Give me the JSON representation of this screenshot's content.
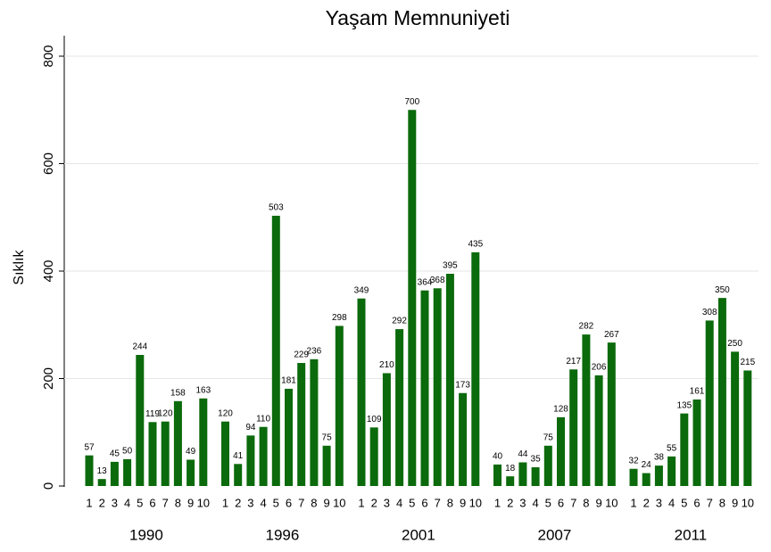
{
  "chart_data": {
    "type": "bar",
    "title": "Yaşam Memnuniyeti",
    "y_label": "Sıklık",
    "categories": [
      "1",
      "2",
      "3",
      "4",
      "5",
      "6",
      "7",
      "8",
      "9",
      "10"
    ],
    "color": "#0b6a0b",
    "groups": [
      {
        "name": "1990",
        "values": [
          57,
          13,
          45,
          50,
          244,
          119,
          120,
          158,
          49,
          163
        ]
      },
      {
        "name": "1996",
        "values": [
          120,
          41,
          94,
          110,
          503,
          181,
          229,
          236,
          75,
          298
        ]
      },
      {
        "name": "2001",
        "values": [
          349,
          109,
          210,
          292,
          700,
          364,
          368,
          395,
          173,
          435
        ]
      },
      {
        "name": "2007",
        "values": [
          40,
          18,
          44,
          35,
          75,
          128,
          217,
          282,
          206,
          267
        ]
      },
      {
        "name": "2011",
        "values": [
          32,
          24,
          38,
          55,
          135,
          161,
          308,
          350,
          250,
          215
        ]
      }
    ],
    "ylim": [
      0,
      800
    ],
    "yticks": [
      0,
      200,
      400,
      600,
      800
    ],
    "grid": true
  }
}
